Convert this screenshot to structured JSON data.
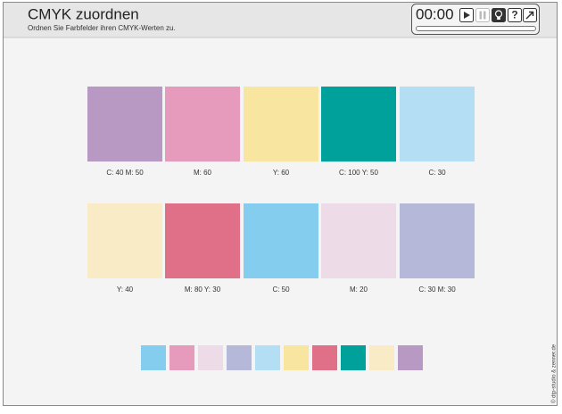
{
  "header": {
    "title": "CMYK zuordnen",
    "subtitle": "Ordnen Sie Farbfelder ihren CMYK-Werten zu."
  },
  "toolbar": {
    "timer": "00:00",
    "help": "?"
  },
  "targets": [
    {
      "label": "C: 40 M: 50",
      "color": "#b899c3"
    },
    {
      "label": "M: 60",
      "color": "#e69bbd"
    },
    {
      "label": "Y: 60",
      "color": "#f8e6a0"
    },
    {
      "label": "C: 100 Y: 50",
      "color": "#00a19a"
    },
    {
      "label": "C: 30",
      "color": "#b4def4"
    },
    {
      "label": "Y: 40",
      "color": "#f8ebc5"
    },
    {
      "label": "M: 80 Y: 30",
      "color": "#df7088"
    },
    {
      "label": "C: 50",
      "color": "#84cdee"
    },
    {
      "label": "M: 20",
      "color": "#eedbe8"
    },
    {
      "label": "C: 30 M: 30",
      "color": "#b6b8d9"
    }
  ],
  "tray": [
    "#84cdee",
    "#e69bbd",
    "#eedbe8",
    "#b6b8d9",
    "#b4def4",
    "#f8e6a0",
    "#df7088",
    "#00a19a",
    "#f8ebc5",
    "#b899c3"
  ],
  "copyright": "© dtp-studio & zenner.de"
}
